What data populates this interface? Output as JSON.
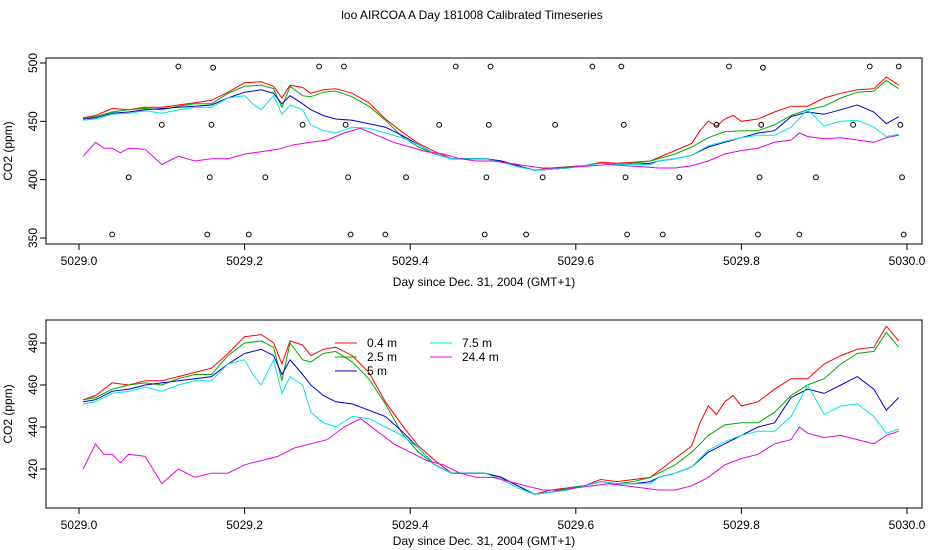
{
  "window": {
    "title": "loo AIRCOA A  Day 181008  Calibrated Timeseries"
  },
  "chart_data": [
    {
      "type": "scatter",
      "title": "loo AIRCOA A  Day 181008  Calibrated Timeseries",
      "xlabel": "Day since Dec. 31, 2004 (GMT+1)",
      "ylabel": "CO2 (ppm)",
      "xlim": [
        5029.0,
        5030.0
      ],
      "ylim": [
        350,
        500
      ],
      "x_ticks": [
        5029.0,
        5029.2,
        5029.4,
        5029.6,
        5029.8,
        5030.0
      ],
      "x_tick_labels": [
        "5029.0",
        "5029.2",
        "5029.4",
        "5029.6",
        "5029.8",
        "5030.0"
      ],
      "y_ticks": [
        350,
        400,
        450,
        500
      ],
      "y_tick_labels": [
        "350",
        "400",
        "450",
        "500"
      ],
      "line_series": [
        {
          "color": "#ff0000",
          "x": [
            5029.005,
            5029.02,
            5029.04,
            5029.06,
            5029.08,
            5029.1,
            5029.12,
            5029.14,
            5029.16,
            5029.18,
            5029.2,
            5029.22,
            5029.235,
            5029.245,
            5029.255,
            5029.27,
            5029.28,
            5029.295,
            5029.31,
            5029.33,
            5029.35,
            5029.37,
            5029.39,
            5029.41,
            5029.43,
            5029.45,
            5029.47,
            5029.49,
            5029.51,
            5029.53,
            5029.55,
            5029.57,
            5029.59,
            5029.61,
            5029.63,
            5029.65,
            5029.67,
            5029.69,
            5029.7,
            5029.72,
            5029.74,
            5029.75,
            5029.76,
            5029.77,
            5029.78,
            5029.79,
            5029.8,
            5029.82,
            5029.84,
            5029.86,
            5029.88,
            5029.9,
            5029.92,
            5029.94,
            5029.96,
            5029.975,
            5029.99
          ],
          "y": [
            453,
            455,
            461,
            460,
            462,
            462,
            464,
            466,
            468,
            475,
            483,
            484,
            480,
            470,
            481,
            479,
            474,
            477,
            478,
            474,
            466,
            452,
            441,
            431,
            424,
            418,
            418,
            418,
            416,
            412,
            408,
            410,
            411,
            412,
            415,
            414,
            415,
            416,
            419,
            425,
            431,
            442,
            450,
            446,
            452,
            455,
            450,
            452,
            458,
            463,
            463,
            470,
            474,
            477,
            478,
            488,
            481
          ]
        },
        {
          "color": "#00aa00",
          "x": [
            5029.005,
            5029.02,
            5029.04,
            5029.06,
            5029.08,
            5029.1,
            5029.12,
            5029.14,
            5029.16,
            5029.18,
            5029.2,
            5029.22,
            5029.235,
            5029.245,
            5029.255,
            5029.27,
            5029.28,
            5029.295,
            5029.31,
            5029.33,
            5029.35,
            5029.37,
            5029.39,
            5029.41,
            5029.43,
            5029.45,
            5029.47,
            5029.49,
            5029.51,
            5029.53,
            5029.55,
            5029.57,
            5029.59,
            5029.61,
            5029.63,
            5029.65,
            5029.67,
            5029.69,
            5029.7,
            5029.72,
            5029.74,
            5029.76,
            5029.78,
            5029.8,
            5029.82,
            5029.84,
            5029.86,
            5029.88,
            5029.9,
            5029.92,
            5029.94,
            5029.96,
            5029.975,
            5029.99
          ],
          "y": [
            453,
            454,
            458,
            460,
            461,
            460,
            463,
            465,
            465,
            474,
            480,
            481,
            478,
            462,
            480,
            472,
            471,
            475,
            476,
            471,
            463,
            451,
            437,
            428,
            422,
            418,
            418,
            418,
            416,
            412,
            408,
            409,
            411,
            412,
            414,
            413,
            414,
            416,
            418,
            422,
            428,
            436,
            441,
            442,
            442,
            447,
            455,
            460,
            463,
            470,
            475,
            476,
            485,
            478
          ]
        },
        {
          "color": "#0000cc",
          "x": [
            5029.005,
            5029.02,
            5029.04,
            5029.06,
            5029.08,
            5029.1,
            5029.12,
            5029.14,
            5029.16,
            5029.18,
            5029.2,
            5029.22,
            5029.235,
            5029.245,
            5029.255,
            5029.27,
            5029.28,
            5029.295,
            5029.31,
            5029.33,
            5029.35,
            5029.37,
            5029.39,
            5029.41,
            5029.43,
            5029.45,
            5029.47,
            5029.49,
            5029.51,
            5029.53,
            5029.55,
            5029.57,
            5029.59,
            5029.61,
            5029.63,
            5029.65,
            5029.67,
            5029.69,
            5029.7,
            5029.72,
            5029.74,
            5029.76,
            5029.78,
            5029.8,
            5029.82,
            5029.84,
            5029.86,
            5029.88,
            5029.9,
            5029.92,
            5029.94,
            5029.96,
            5029.975,
            5029.99
          ],
          "y": [
            452,
            453,
            457,
            458,
            460,
            461,
            462,
            463,
            464,
            470,
            475,
            477,
            474,
            465,
            472,
            465,
            460,
            455,
            452,
            451,
            448,
            445,
            438,
            430,
            422,
            418,
            418,
            418,
            416,
            412,
            408,
            409,
            410,
            412,
            414,
            413,
            413,
            414,
            416,
            418,
            421,
            428,
            432,
            436,
            440,
            442,
            454,
            458,
            456,
            460,
            464,
            458,
            448,
            454
          ]
        },
        {
          "color": "#00e5e5",
          "x": [
            5029.005,
            5029.02,
            5029.04,
            5029.06,
            5029.08,
            5029.1,
            5029.12,
            5029.14,
            5029.16,
            5029.18,
            5029.2,
            5029.21,
            5029.22,
            5029.235,
            5029.245,
            5029.255,
            5029.27,
            5029.28,
            5029.295,
            5029.31,
            5029.33,
            5029.35,
            5029.37,
            5029.39,
            5029.41,
            5029.43,
            5029.45,
            5029.47,
            5029.49,
            5029.51,
            5029.53,
            5029.55,
            5029.57,
            5029.59,
            5029.61,
            5029.63,
            5029.65,
            5029.67,
            5029.69,
            5029.7,
            5029.72,
            5029.74,
            5029.76,
            5029.78,
            5029.8,
            5029.82,
            5029.84,
            5029.86,
            5029.88,
            5029.9,
            5029.92,
            5029.94,
            5029.96,
            5029.975,
            5029.99
          ],
          "y": [
            451,
            452,
            456,
            457,
            459,
            457,
            460,
            462,
            462,
            470,
            472,
            465,
            460,
            472,
            456,
            464,
            460,
            447,
            442,
            440,
            445,
            444,
            440,
            436,
            430,
            422,
            418,
            418,
            418,
            415,
            411,
            408,
            409,
            410,
            412,
            414,
            413,
            413,
            413,
            416,
            418,
            421,
            429,
            433,
            436,
            438,
            438,
            445,
            460,
            446,
            450,
            451,
            445,
            437,
            439
          ]
        },
        {
          "color": "#e600e6",
          "x": [
            5029.005,
            5029.02,
            5029.03,
            5029.04,
            5029.05,
            5029.06,
            5029.08,
            5029.1,
            5029.12,
            5029.14,
            5029.16,
            5029.18,
            5029.2,
            5029.22,
            5029.24,
            5029.26,
            5029.28,
            5029.3,
            5029.32,
            5029.34,
            5029.36,
            5029.38,
            5029.4,
            5029.42,
            5029.44,
            5029.46,
            5029.48,
            5029.5,
            5029.52,
            5029.54,
            5029.56,
            5029.58,
            5029.6,
            5029.62,
            5029.64,
            5029.66,
            5029.68,
            5029.7,
            5029.72,
            5029.74,
            5029.76,
            5029.78,
            5029.8,
            5029.82,
            5029.84,
            5029.86,
            5029.87,
            5029.88,
            5029.9,
            5029.92,
            5029.94,
            5029.96,
            5029.975,
            5029.99
          ],
          "y": [
            420,
            432,
            427,
            427,
            423,
            427,
            426,
            413,
            420,
            416,
            418,
            418,
            422,
            424,
            426,
            430,
            432,
            434,
            440,
            444,
            438,
            432,
            428,
            424,
            422,
            418,
            416,
            416,
            414,
            412,
            410,
            410,
            411,
            412,
            413,
            412,
            411,
            410,
            410,
            412,
            416,
            422,
            425,
            427,
            432,
            434,
            440,
            437,
            435,
            436,
            434,
            432,
            436,
            438
          ]
        }
      ],
      "points": [
        [
          5029.04,
          353
        ],
        [
          5029.06,
          402
        ],
        [
          5029.1,
          447
        ],
        [
          5029.12,
          497
        ],
        [
          5029.155,
          353
        ],
        [
          5029.158,
          402
        ],
        [
          5029.16,
          447
        ],
        [
          5029.162,
          496
        ],
        [
          5029.205,
          353
        ],
        [
          5029.225,
          402
        ],
        [
          5029.27,
          447
        ],
        [
          5029.29,
          497
        ],
        [
          5029.32,
          497
        ],
        [
          5029.322,
          447
        ],
        [
          5029.325,
          402
        ],
        [
          5029.328,
          353
        ],
        [
          5029.37,
          353
        ],
        [
          5029.395,
          402
        ],
        [
          5029.435,
          447
        ],
        [
          5029.455,
          497
        ],
        [
          5029.49,
          353
        ],
        [
          5029.492,
          402
        ],
        [
          5029.495,
          447
        ],
        [
          5029.497,
          497
        ],
        [
          5029.54,
          353
        ],
        [
          5029.56,
          402
        ],
        [
          5029.575,
          447
        ],
        [
          5029.62,
          497
        ],
        [
          5029.655,
          497
        ],
        [
          5029.658,
          447
        ],
        [
          5029.66,
          402
        ],
        [
          5029.662,
          353
        ],
        [
          5029.705,
          353
        ],
        [
          5029.725,
          402
        ],
        [
          5029.77,
          447
        ],
        [
          5029.785,
          497
        ],
        [
          5029.82,
          353
        ],
        [
          5029.822,
          402
        ],
        [
          5029.824,
          447
        ],
        [
          5029.826,
          496
        ],
        [
          5029.87,
          353
        ],
        [
          5029.89,
          402
        ],
        [
          5029.935,
          447
        ],
        [
          5029.955,
          497
        ],
        [
          5029.99,
          497
        ],
        [
          5029.992,
          447
        ],
        [
          5029.994,
          402
        ],
        [
          5029.996,
          353
        ]
      ]
    },
    {
      "type": "line",
      "xlabel": "Day since Dec. 31, 2004 (GMT+1)",
      "ylabel": "CO2 (ppm)",
      "xlim": [
        5029.0,
        5030.0
      ],
      "ylim": [
        404,
        490
      ],
      "x_ticks": [
        5029.0,
        5029.2,
        5029.4,
        5029.6,
        5029.8,
        5030.0
      ],
      "x_tick_labels": [
        "5029.0",
        "5029.2",
        "5029.4",
        "5029.6",
        "5029.8",
        "5030.0"
      ],
      "y_ticks": [
        420,
        440,
        460,
        480
      ],
      "y_tick_labels": [
        "420",
        "440",
        "460",
        "480"
      ],
      "legend": {
        "placement": "top-center",
        "columns": [
          [
            {
              "name": "0.4 m",
              "color": "#ff0000"
            },
            {
              "name": "2.5 m",
              "color": "#00aa00"
            },
            {
              "name": "5 m",
              "color": "#0000cc"
            }
          ],
          [
            {
              "name": "7.5 m",
              "color": "#00e5e5"
            },
            {
              "name": "24.4 m",
              "color": "#e600e6"
            }
          ]
        ]
      },
      "series_ref": "same data as line_series above"
    }
  ]
}
